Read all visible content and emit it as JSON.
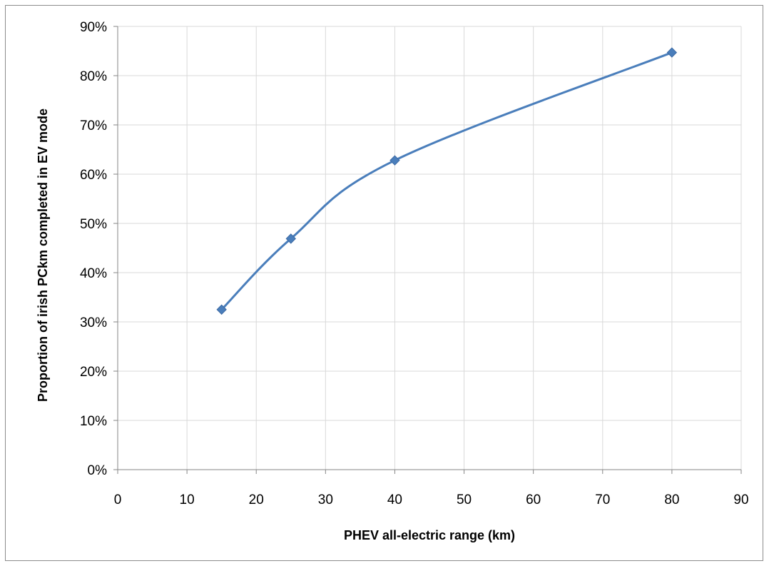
{
  "chart_data": {
    "type": "scatter",
    "title": "",
    "xlabel": "PHEV all-electric range (km)",
    "ylabel": "Proportion of irish PCkm completed in EV mode",
    "xlim": [
      0,
      90
    ],
    "ylim": [
      0,
      0.9
    ],
    "x_ticks": [
      "0",
      "10",
      "20",
      "30",
      "40",
      "50",
      "60",
      "70",
      "80",
      "90"
    ],
    "y_ticks": [
      "0%",
      "10%",
      "20%",
      "30%",
      "40%",
      "50%",
      "60%",
      "70%",
      "80%",
      "90%"
    ],
    "grid": true,
    "legend": "none",
    "line_style": "smoothed line with diamond markers",
    "series": [
      {
        "color": "#4a7ebb",
        "x": [
          15,
          25,
          40,
          80
        ],
        "y": [
          0.325,
          0.469,
          0.628,
          0.847
        ]
      }
    ]
  }
}
